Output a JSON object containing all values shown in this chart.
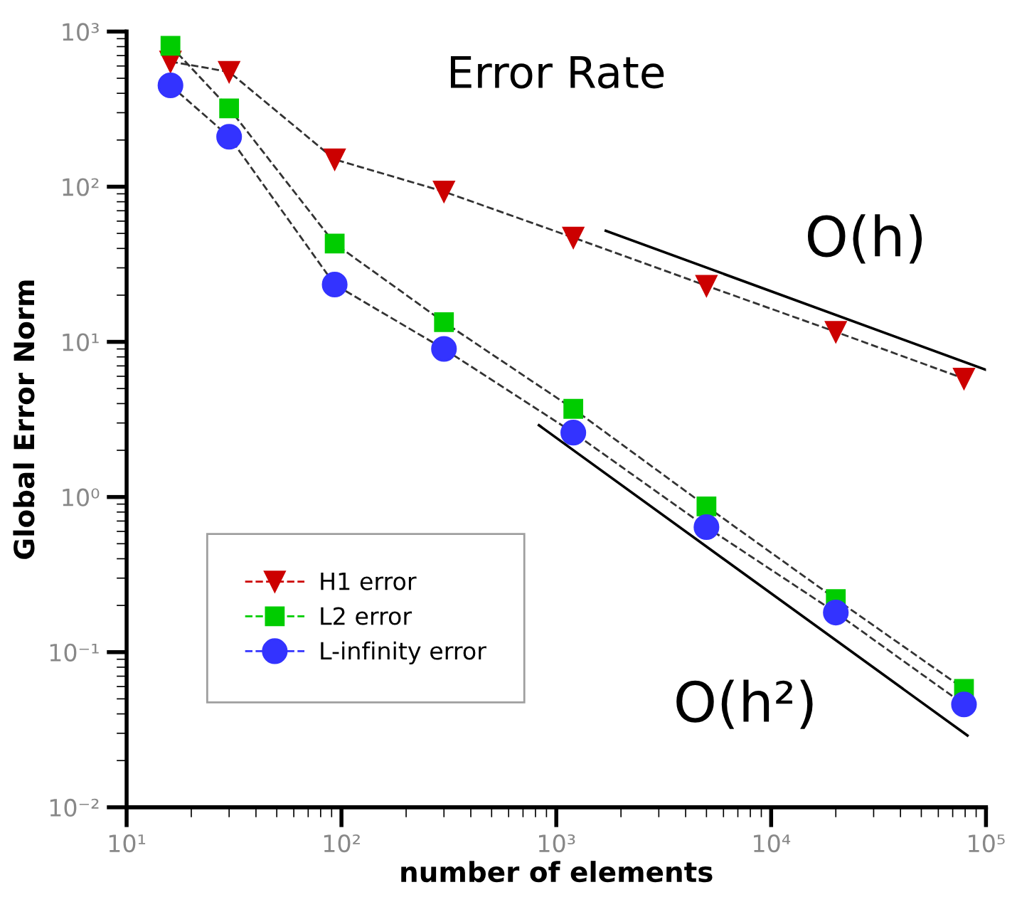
{
  "chart_data": {
    "type": "line",
    "title": "Error Rate",
    "xlabel": "number of elements",
    "ylabel": "Global Error Norm",
    "log": "xy",
    "grid": false,
    "legend": "bottom left",
    "line_style": "dashed",
    "xlim": [
      10,
      100000
    ],
    "ylim": [
      0.01,
      1000
    ],
    "xticks": [
      {
        "value": 10,
        "label": "10¹"
      },
      {
        "value": 100,
        "label": "10²"
      },
      {
        "value": 1000,
        "label": "10³"
      },
      {
        "value": 10000,
        "label": "10⁴"
      },
      {
        "value": 100000,
        "label": "10⁵"
      }
    ],
    "yticks": [
      {
        "value": 0.01,
        "label": "10⁻²"
      },
      {
        "value": 0.1,
        "label": "10⁻¹"
      },
      {
        "value": 1,
        "label": "10⁰"
      },
      {
        "value": 10,
        "label": "10¹"
      },
      {
        "value": 100,
        "label": "10²"
      },
      {
        "value": 1000,
        "label": "10³"
      }
    ],
    "x": [
      16,
      30,
      93,
      300,
      1200,
      5000,
      20000,
      79000
    ],
    "series": [
      {
        "name": "H1 error",
        "color": "#cc0000",
        "marker": "triangle",
        "values": [
          640,
          550,
          150,
          93,
          47,
          23,
          11.6,
          5.8
        ]
      },
      {
        "name": "L2 error",
        "color": "#00cc00",
        "marker": "square",
        "values": [
          810,
          320,
          43,
          13.4,
          3.7,
          0.87,
          0.22,
          0.058
        ]
      },
      {
        "name": "L-infinity error",
        "color": "#3333ff",
        "marker": "circle",
        "values": [
          450,
          210,
          23.4,
          9.0,
          2.6,
          0.64,
          0.18,
          0.046
        ]
      },
      {
        "type": "line",
        "color": "#000000",
        "line_style": "solid",
        "marker": "none",
        "x": [
          1700,
          100000
        ],
        "values": [
          52,
          6.6
        ]
      },
      {
        "type": "line",
        "color": "#000000",
        "line_style": "solid",
        "marker": "none",
        "x": [
          830,
          82000
        ],
        "values": [
          2.9,
          0.029
        ]
      }
    ],
    "annotations": [
      "O(h)",
      "O(h²)"
    ]
  }
}
